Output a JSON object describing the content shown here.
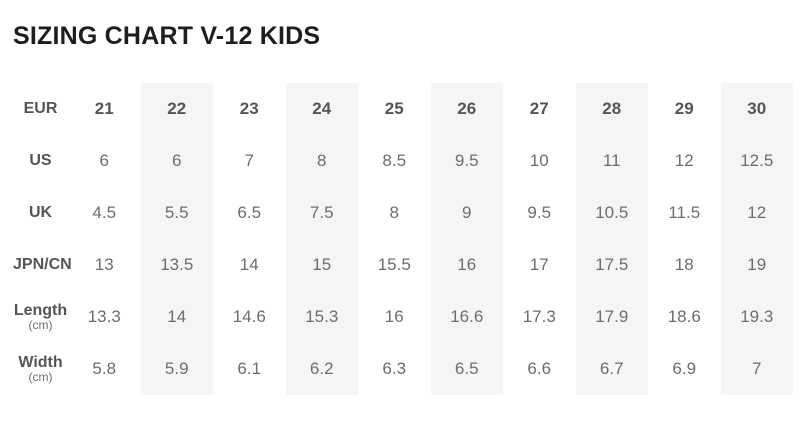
{
  "title": "SIZING CHART V-12 KIDS",
  "colors": {
    "background": "#ffffff",
    "title": "#1e1e1e",
    "label": "#555555",
    "value": "#6d6d6d",
    "stripe": "#f5f5f5"
  },
  "chart_data": {
    "type": "table",
    "title": "SIZING CHART V-12 KIDS",
    "header": {
      "label": "EUR",
      "columns": [
        "21",
        "22",
        "23",
        "24",
        "25",
        "26",
        "27",
        "28",
        "29",
        "30"
      ]
    },
    "rows": [
      {
        "label": "US",
        "sublabel": "",
        "values": [
          "6",
          "6",
          "7",
          "8",
          "8.5",
          "9.5",
          "10",
          "11",
          "12",
          "12.5"
        ]
      },
      {
        "label": "UK",
        "sublabel": "",
        "values": [
          "4.5",
          "5.5",
          "6.5",
          "7.5",
          "8",
          "9",
          "9.5",
          "10.5",
          "11.5",
          "12"
        ]
      },
      {
        "label": "JPN/CN",
        "sublabel": "",
        "values": [
          "13",
          "13.5",
          "14",
          "15",
          "15.5",
          "16",
          "17",
          "17.5",
          "18",
          "19"
        ]
      },
      {
        "label": "Length",
        "sublabel": "(cm)",
        "values": [
          "13.3",
          "14",
          "14.6",
          "15.3",
          "16",
          "16.6",
          "17.3",
          "17.9",
          "18.6",
          "19.3"
        ]
      },
      {
        "label": "Width",
        "sublabel": "(cm)",
        "values": [
          "5.8",
          "5.9",
          "6.1",
          "6.2",
          "6.3",
          "6.5",
          "6.6",
          "6.7",
          "6.9",
          "7"
        ]
      }
    ],
    "shaded_column_indexes": [
      1,
      3,
      5,
      7,
      9
    ],
    "shaded_columns_eur": [
      "22",
      "24",
      "26",
      "28",
      "30"
    ],
    "grid": false,
    "legend": false
  }
}
